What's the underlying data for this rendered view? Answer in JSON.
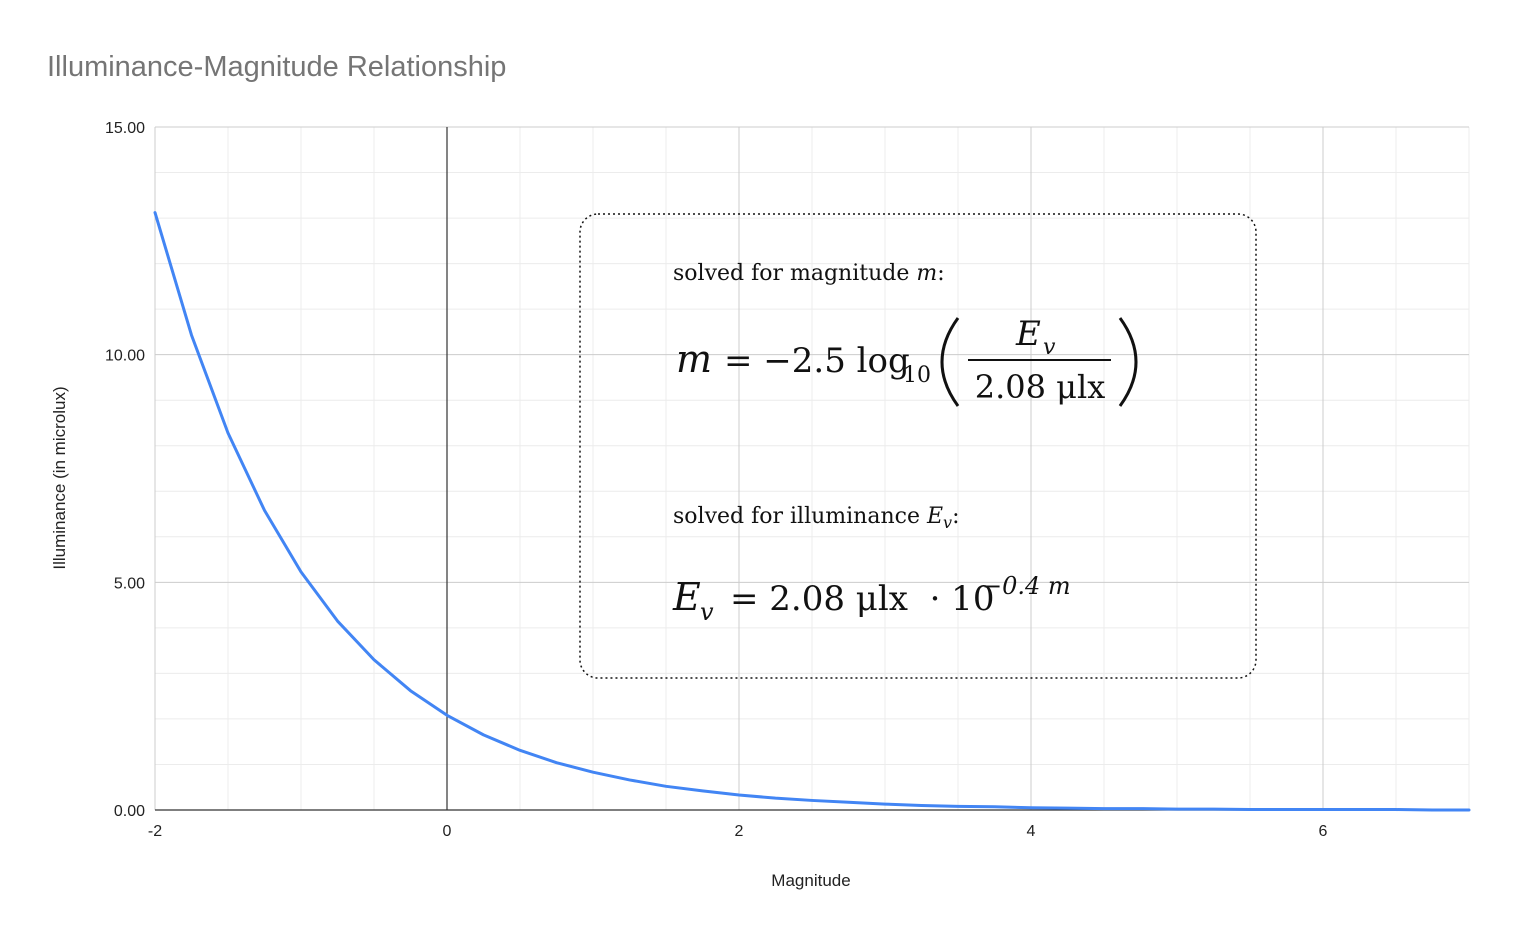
{
  "chart_data": {
    "type": "line",
    "title": "Illuminance-Magnitude Relationship",
    "xlabel": "Magnitude",
    "ylabel": "Illuminance (in microlux)",
    "xlim": [
      -2,
      7
    ],
    "ylim": [
      0,
      15
    ],
    "x_ticks": [
      -2,
      0,
      2,
      4,
      6
    ],
    "x_tick_labels": [
      "-2",
      "0",
      "2",
      "4",
      "6"
    ],
    "y_ticks": [
      0,
      5,
      10,
      15
    ],
    "y_tick_labels": [
      "0.00",
      "5.00",
      "10.00",
      "15.00"
    ],
    "grid": true,
    "legend": "none",
    "series": [
      {
        "color": "#4285f4",
        "x": [
          -2,
          -1.75,
          -1.5,
          -1.25,
          -1,
          -0.75,
          -0.5,
          -0.25,
          0,
          0.25,
          0.5,
          0.75,
          1,
          1.25,
          1.5,
          1.75,
          2,
          2.25,
          2.5,
          2.75,
          3,
          3.25,
          3.5,
          3.75,
          4,
          4.25,
          4.5,
          4.75,
          5,
          5.25,
          5.5,
          5.75,
          6,
          6.25,
          6.5,
          6.75,
          7
        ],
        "y": [
          13.12,
          10.43,
          8.28,
          6.58,
          5.23,
          4.15,
          3.3,
          2.62,
          2.08,
          1.65,
          1.31,
          1.04,
          0.83,
          0.66,
          0.52,
          0.42,
          0.33,
          0.26,
          0.21,
          0.17,
          0.13,
          0.1,
          0.08,
          0.07,
          0.05,
          0.04,
          0.03,
          0.03,
          0.02,
          0.02,
          0.01,
          0.01,
          0.01,
          0.01,
          0.01,
          0.0,
          0.0
        ]
      }
    ],
    "annotation": {
      "line1": "solved for magnitude ",
      "line1_var": "m",
      "line1_end": ":",
      "eq1_lhs": "m",
      "eq1_rhs": "= −2.5 log",
      "eq1_sub": "10",
      "eq1_num": "E",
      "eq1_num_sub": "v",
      "eq1_den": "2.08 μlx",
      "line2": "solved for illuminance ",
      "line2_var": "E",
      "line2_var_sub": "v",
      "line2_end": ":",
      "eq2_lhs": "E",
      "eq2_lhs_sub": "v",
      "eq2_rhs": "= 2.08 μlx  · 10",
      "eq2_exp": "−0.4 m"
    }
  }
}
